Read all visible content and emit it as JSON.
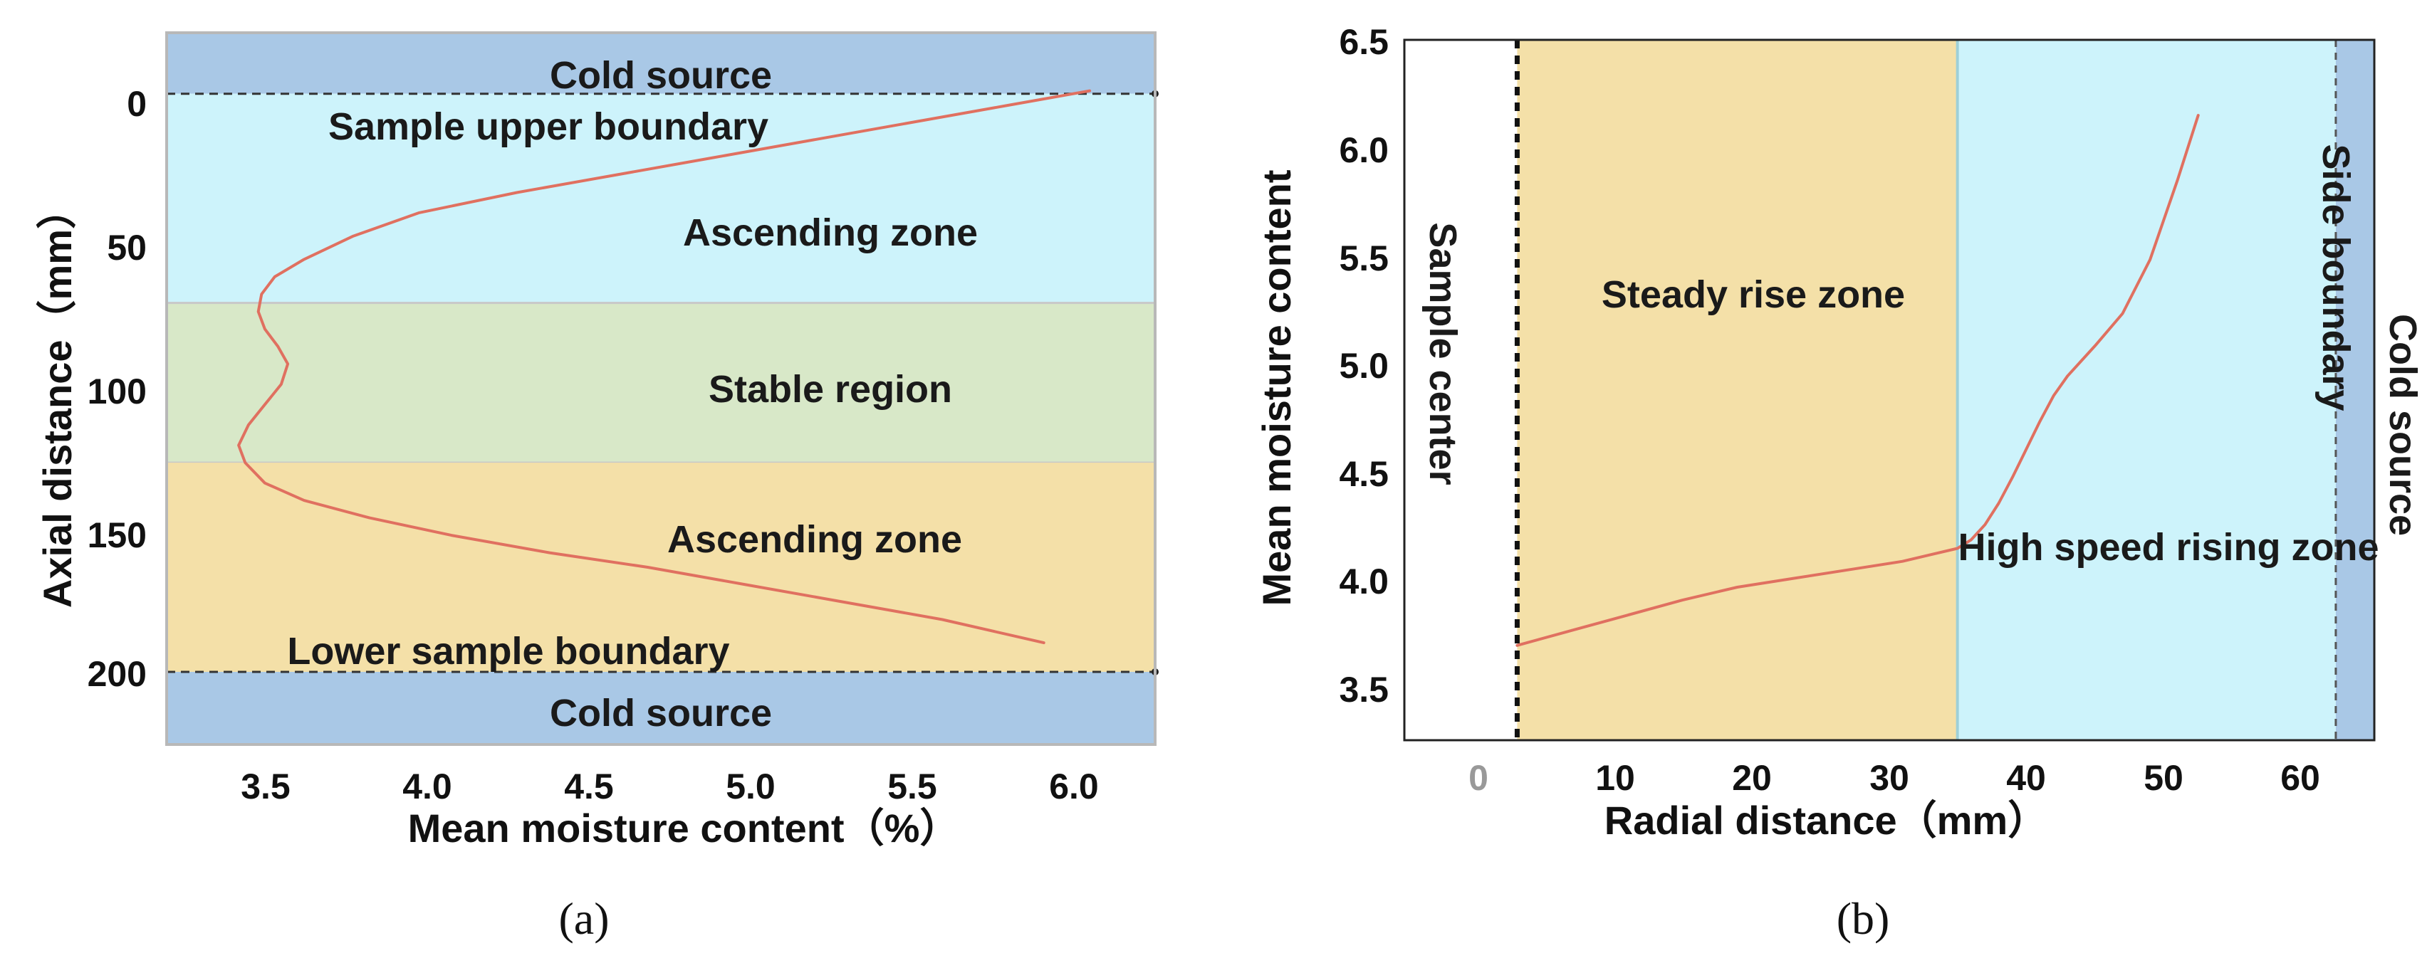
{
  "chart_data": [
    {
      "id": "a",
      "type": "line",
      "panel_label": "(a)",
      "xlabel": "Mean moisture content（%）",
      "ylabel": "Axial distance（mm）",
      "x_ticks": [
        "3.5",
        "4.0",
        "4.5",
        "5.0",
        "5.5",
        "6.0"
      ],
      "x_tick_values": [
        3.5,
        4.0,
        4.5,
        5.0,
        5.5,
        6.0
      ],
      "y_ticks": [
        "0",
        "50",
        "100",
        "150",
        "200"
      ],
      "y_tick_values": [
        0,
        50,
        100,
        150,
        200
      ],
      "xlim": [
        3.23,
        6.25
      ],
      "ylim": [
        -20,
        225
      ],
      "y_inverted": true,
      "regions": [
        {
          "label": "Cold source",
          "y_from": -20,
          "y_to": 1,
          "color": "#a9c8e6"
        },
        {
          "label": "Ascending zone",
          "y_from": 1,
          "y_to": 73,
          "color": "#cdf3fb"
        },
        {
          "label": "Stable region",
          "y_from": 73,
          "y_to": 128,
          "color": "#d8e8c8"
        },
        {
          "label": "Ascending zone",
          "y_from": 128,
          "y_to": 200,
          "color": "#f4e0a8"
        },
        {
          "label": "Cold source",
          "y_from": 200,
          "y_to": 225,
          "color": "#a9c8e6"
        }
      ],
      "boundaries": [
        {
          "label": "Sample upper boundary",
          "y": 1
        },
        {
          "label": "Lower sample boundary",
          "y": 200
        }
      ],
      "series": [
        {
          "name": "Mean moisture content",
          "color": "#e07060",
          "x": [
            6.05,
            5.8,
            5.5,
            5.2,
            4.9,
            4.6,
            4.3,
            4.0,
            3.8,
            3.65,
            3.56,
            3.52,
            3.51,
            3.53,
            3.57,
            3.6,
            3.58,
            3.53,
            3.48,
            3.45,
            3.47,
            3.53,
            3.65,
            3.85,
            4.1,
            4.4,
            4.7,
            5.0,
            5.3,
            5.6,
            5.91
          ],
          "y": [
            0,
            5,
            11,
            17,
            23,
            29,
            35,
            42,
            50,
            58,
            64,
            70,
            76,
            82,
            88,
            94,
            101,
            108,
            115,
            122,
            128,
            135,
            141,
            147,
            153,
            159,
            164,
            170,
            176,
            182,
            190
          ]
        }
      ]
    },
    {
      "id": "b",
      "type": "line",
      "panel_label": "(b)",
      "xlabel": "Radial distance（mm）",
      "ylabel": "Mean moisture content",
      "x_ticks": [
        "0",
        "10",
        "20",
        "30",
        "40",
        "50",
        "60"
      ],
      "x_tick_values": [
        0,
        10,
        20,
        30,
        40,
        50,
        60
      ],
      "y_ticks": [
        "3.5",
        "4.0",
        "4.5",
        "5.0",
        "5.5",
        "6.0",
        "6.5"
      ],
      "y_tick_values": [
        3.5,
        4.0,
        4.5,
        5.0,
        5.5,
        6.0,
        6.5
      ],
      "xlim": [
        -8.2,
        62.3
      ],
      "ylim": [
        3.25,
        6.5
      ],
      "regions": [
        {
          "label": "Steady rise zone",
          "x_from": 0,
          "x_to": 32,
          "color": "#f4e0a8"
        },
        {
          "label": "High speed rising zone",
          "x_from": 32,
          "x_to": 59.5,
          "color": "#cdf3fb"
        },
        {
          "label": "Cold source",
          "x_from": 59.5,
          "x_to": 62.3,
          "color": "#a9c8e6"
        }
      ],
      "boundaries": [
        {
          "label": "Sample center",
          "x": 0
        },
        {
          "label": "Side boundary",
          "x": 59.5
        }
      ],
      "series": [
        {
          "name": "Mean moisture content",
          "color": "#e07060",
          "x": [
            0,
            4,
            8,
            12,
            16,
            20,
            24,
            28,
            30,
            32,
            33,
            34,
            35,
            36,
            37,
            38,
            39,
            40,
            42,
            44,
            46,
            48,
            49.5
          ],
          "y": [
            3.69,
            3.76,
            3.83,
            3.9,
            3.96,
            4.0,
            4.04,
            4.08,
            4.11,
            4.14,
            4.18,
            4.25,
            4.35,
            4.47,
            4.6,
            4.73,
            4.85,
            4.94,
            5.08,
            5.23,
            5.48,
            5.85,
            6.15
          ]
        }
      ]
    }
  ]
}
